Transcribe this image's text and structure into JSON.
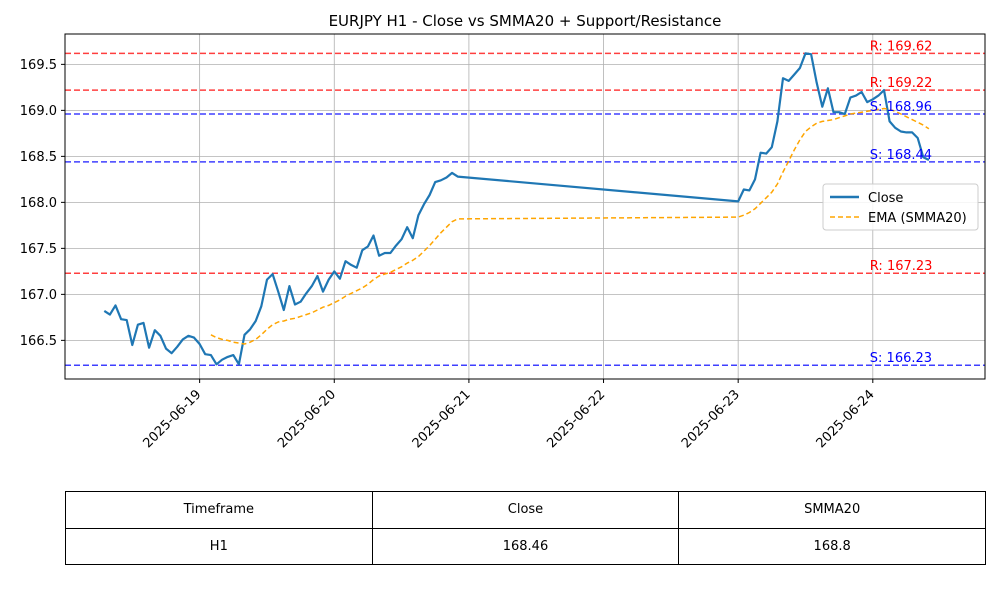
{
  "chart_data": {
    "type": "line",
    "title": "EURJPY H1 - Close vs SMMA20 + Support/Resistance",
    "xlabel": "",
    "ylabel": "",
    "x_tick_labels": [
      "2025-06-19",
      "2025-06-20",
      "2025-06-21",
      "2025-06-22",
      "2025-06-23",
      "2025-06-24"
    ],
    "y_tick_labels": [
      "166.5",
      "167.0",
      "167.5",
      "168.0",
      "168.5",
      "169.0",
      "169.5"
    ],
    "xlim": [
      "2025-06-18 00:00",
      "2025-06-24 20:00"
    ],
    "ylim": [
      166.08,
      169.83
    ],
    "grid": true,
    "legend_position": "center-right",
    "series": [
      {
        "name": "Close",
        "color": "#1f77b4",
        "style": "solid",
        "points": [
          [
            "2025-06-18 07:00",
            166.82
          ],
          [
            "2025-06-18 08:00",
            166.78
          ],
          [
            "2025-06-18 09:00",
            166.88
          ],
          [
            "2025-06-18 10:00",
            166.73
          ],
          [
            "2025-06-18 11:00",
            166.72
          ],
          [
            "2025-06-18 12:00",
            166.45
          ],
          [
            "2025-06-18 13:00",
            166.67
          ],
          [
            "2025-06-18 14:00",
            166.69
          ],
          [
            "2025-06-18 15:00",
            166.42
          ],
          [
            "2025-06-18 16:00",
            166.61
          ],
          [
            "2025-06-18 17:00",
            166.55
          ],
          [
            "2025-06-18 18:00",
            166.41
          ],
          [
            "2025-06-18 19:00",
            166.36
          ],
          [
            "2025-06-18 20:00",
            166.43
          ],
          [
            "2025-06-18 21:00",
            166.51
          ],
          [
            "2025-06-18 22:00",
            166.55
          ],
          [
            "2025-06-18 23:00",
            166.53
          ],
          [
            "2025-06-19 00:00",
            166.46
          ],
          [
            "2025-06-19 01:00",
            166.35
          ],
          [
            "2025-06-19 02:00",
            166.34
          ],
          [
            "2025-06-19 03:00",
            166.24
          ],
          [
            "2025-06-19 04:00",
            166.29
          ],
          [
            "2025-06-19 05:00",
            166.32
          ],
          [
            "2025-06-19 06:00",
            166.34
          ],
          [
            "2025-06-19 07:00",
            166.24
          ],
          [
            "2025-06-19 08:00",
            166.56
          ],
          [
            "2025-06-19 09:00",
            166.62
          ],
          [
            "2025-06-19 10:00",
            166.71
          ],
          [
            "2025-06-19 11:00",
            166.87
          ],
          [
            "2025-06-19 12:00",
            167.16
          ],
          [
            "2025-06-19 13:00",
            167.22
          ],
          [
            "2025-06-19 14:00",
            167.03
          ],
          [
            "2025-06-19 15:00",
            166.83
          ],
          [
            "2025-06-19 16:00",
            167.09
          ],
          [
            "2025-06-19 17:00",
            166.89
          ],
          [
            "2025-06-19 18:00",
            166.92
          ],
          [
            "2025-06-19 19:00",
            167.01
          ],
          [
            "2025-06-19 20:00",
            167.09
          ],
          [
            "2025-06-19 21:00",
            167.2
          ],
          [
            "2025-06-19 22:00",
            167.03
          ],
          [
            "2025-06-19 23:00",
            167.16
          ],
          [
            "2025-06-20 00:00",
            167.25
          ],
          [
            "2025-06-20 01:00",
            167.17
          ],
          [
            "2025-06-20 02:00",
            167.36
          ],
          [
            "2025-06-20 03:00",
            167.32
          ],
          [
            "2025-06-20 04:00",
            167.29
          ],
          [
            "2025-06-20 05:00",
            167.48
          ],
          [
            "2025-06-20 06:00",
            167.52
          ],
          [
            "2025-06-20 07:00",
            167.64
          ],
          [
            "2025-06-20 08:00",
            167.42
          ],
          [
            "2025-06-20 09:00",
            167.45
          ],
          [
            "2025-06-20 10:00",
            167.45
          ],
          [
            "2025-06-20 11:00",
            167.53
          ],
          [
            "2025-06-20 12:00",
            167.6
          ],
          [
            "2025-06-20 13:00",
            167.73
          ],
          [
            "2025-06-20 14:00",
            167.61
          ],
          [
            "2025-06-20 15:00",
            167.86
          ],
          [
            "2025-06-20 16:00",
            167.98
          ],
          [
            "2025-06-20 17:00",
            168.08
          ],
          [
            "2025-06-20 18:00",
            168.22
          ],
          [
            "2025-06-20 19:00",
            168.24
          ],
          [
            "2025-06-20 20:00",
            168.27
          ],
          [
            "2025-06-20 21:00",
            168.32
          ],
          [
            "2025-06-20 22:00",
            168.28
          ],
          [
            "2025-06-23 00:00",
            168.01
          ],
          [
            "2025-06-23 01:00",
            168.14
          ],
          [
            "2025-06-23 02:00",
            168.13
          ],
          [
            "2025-06-23 03:00",
            168.25
          ],
          [
            "2025-06-23 04:00",
            168.54
          ],
          [
            "2025-06-23 05:00",
            168.53
          ],
          [
            "2025-06-23 06:00",
            168.6
          ],
          [
            "2025-06-23 07:00",
            168.88
          ],
          [
            "2025-06-23 08:00",
            169.35
          ],
          [
            "2025-06-23 09:00",
            169.32
          ],
          [
            "2025-06-23 10:00",
            169.39
          ],
          [
            "2025-06-23 11:00",
            169.46
          ],
          [
            "2025-06-23 12:00",
            169.62
          ],
          [
            "2025-06-23 13:00",
            169.61
          ],
          [
            "2025-06-23 14:00",
            169.3
          ],
          [
            "2025-06-23 15:00",
            169.04
          ],
          [
            "2025-06-23 16:00",
            169.24
          ],
          [
            "2025-06-23 17:00",
            168.98
          ],
          [
            "2025-06-23 18:00",
            168.98
          ],
          [
            "2025-06-23 19:00",
            168.96
          ],
          [
            "2025-06-23 20:00",
            169.14
          ],
          [
            "2025-06-23 21:00",
            169.16
          ],
          [
            "2025-06-23 22:00",
            169.2
          ],
          [
            "2025-06-23 23:00",
            169.09
          ],
          [
            "2025-06-24 00:00",
            169.12
          ],
          [
            "2025-06-24 01:00",
            169.16
          ],
          [
            "2025-06-24 02:00",
            169.22
          ],
          [
            "2025-06-24 03:00",
            168.88
          ],
          [
            "2025-06-24 04:00",
            168.81
          ],
          [
            "2025-06-24 05:00",
            168.77
          ],
          [
            "2025-06-24 06:00",
            168.76
          ],
          [
            "2025-06-24 07:00",
            168.76
          ],
          [
            "2025-06-24 08:00",
            168.7
          ],
          [
            "2025-06-24 09:00",
            168.49
          ],
          [
            "2025-06-24 10:00",
            168.46
          ]
        ]
      },
      {
        "name": "EMA (SMMA20)",
        "color": "#ffa500",
        "style": "dashed",
        "points": [
          [
            "2025-06-19 02:00",
            166.56
          ],
          [
            "2025-06-19 03:00",
            166.53
          ],
          [
            "2025-06-19 04:00",
            166.51
          ],
          [
            "2025-06-19 05:00",
            166.5
          ],
          [
            "2025-06-19 06:00",
            166.48
          ],
          [
            "2025-06-19 07:00",
            166.47
          ],
          [
            "2025-06-19 08:00",
            166.46
          ],
          [
            "2025-06-19 09:00",
            166.48
          ],
          [
            "2025-06-19 10:00",
            166.51
          ],
          [
            "2025-06-19 11:00",
            166.56
          ],
          [
            "2025-06-19 12:00",
            166.62
          ],
          [
            "2025-06-19 13:00",
            166.67
          ],
          [
            "2025-06-19 14:00",
            166.7
          ],
          [
            "2025-06-19 15:00",
            166.71
          ],
          [
            "2025-06-19 16:00",
            166.73
          ],
          [
            "2025-06-19 17:00",
            166.74
          ],
          [
            "2025-06-19 18:00",
            166.76
          ],
          [
            "2025-06-19 19:00",
            166.78
          ],
          [
            "2025-06-19 20:00",
            166.8
          ],
          [
            "2025-06-19 21:00",
            166.83
          ],
          [
            "2025-06-19 22:00",
            166.86
          ],
          [
            "2025-06-19 23:00",
            166.88
          ],
          [
            "2025-06-20 00:00",
            166.91
          ],
          [
            "2025-06-20 01:00",
            166.94
          ],
          [
            "2025-06-20 02:00",
            166.98
          ],
          [
            "2025-06-20 03:00",
            167.01
          ],
          [
            "2025-06-20 04:00",
            167.04
          ],
          [
            "2025-06-20 05:00",
            167.07
          ],
          [
            "2025-06-20 06:00",
            167.11
          ],
          [
            "2025-06-20 07:00",
            167.16
          ],
          [
            "2025-06-20 08:00",
            167.2
          ],
          [
            "2025-06-20 09:00",
            167.22
          ],
          [
            "2025-06-20 10:00",
            167.24
          ],
          [
            "2025-06-20 11:00",
            167.27
          ],
          [
            "2025-06-20 12:00",
            167.3
          ],
          [
            "2025-06-20 13:00",
            167.34
          ],
          [
            "2025-06-20 14:00",
            167.37
          ],
          [
            "2025-06-20 15:00",
            167.41
          ],
          [
            "2025-06-20 16:00",
            167.47
          ],
          [
            "2025-06-20 17:00",
            167.53
          ],
          [
            "2025-06-20 18:00",
            167.6
          ],
          [
            "2025-06-20 19:00",
            167.67
          ],
          [
            "2025-06-20 20:00",
            167.73
          ],
          [
            "2025-06-20 21:00",
            167.79
          ],
          [
            "2025-06-20 22:00",
            167.82
          ],
          [
            "2025-06-23 00:00",
            167.84
          ],
          [
            "2025-06-23 01:00",
            167.86
          ],
          [
            "2025-06-23 02:00",
            167.89
          ],
          [
            "2025-06-23 03:00",
            167.93
          ],
          [
            "2025-06-23 04:00",
            167.99
          ],
          [
            "2025-06-23 05:00",
            168.05
          ],
          [
            "2025-06-23 06:00",
            168.11
          ],
          [
            "2025-06-23 07:00",
            168.2
          ],
          [
            "2025-06-23 08:00",
            168.33
          ],
          [
            "2025-06-23 09:00",
            168.45
          ],
          [
            "2025-06-23 10:00",
            168.57
          ],
          [
            "2025-06-23 11:00",
            168.68
          ],
          [
            "2025-06-23 12:00",
            168.77
          ],
          [
            "2025-06-23 13:00",
            168.82
          ],
          [
            "2025-06-23 14:00",
            168.86
          ],
          [
            "2025-06-23 15:00",
            168.88
          ],
          [
            "2025-06-23 16:00",
            168.89
          ],
          [
            "2025-06-23 17:00",
            168.9
          ],
          [
            "2025-06-23 18:00",
            168.92
          ],
          [
            "2025-06-23 19:00",
            168.94
          ],
          [
            "2025-06-23 20:00",
            168.96
          ],
          [
            "2025-06-23 21:00",
            168.97
          ],
          [
            "2025-06-23 22:00",
            168.98
          ],
          [
            "2025-06-23 23:00",
            168.99
          ],
          [
            "2025-06-24 00:00",
            169.0
          ],
          [
            "2025-06-24 01:00",
            169.01
          ],
          [
            "2025-06-24 02:00",
            169.02
          ],
          [
            "2025-06-24 03:00",
            169.01
          ],
          [
            "2025-06-24 04:00",
            168.99
          ],
          [
            "2025-06-24 05:00",
            168.96
          ],
          [
            "2025-06-24 06:00",
            168.93
          ],
          [
            "2025-06-24 07:00",
            168.9
          ],
          [
            "2025-06-24 08:00",
            168.87
          ],
          [
            "2025-06-24 09:00",
            168.84
          ],
          [
            "2025-06-24 10:00",
            168.8
          ]
        ]
      }
    ],
    "levels": [
      {
        "kind": "resistance",
        "value": 169.62,
        "label": "R: 169.62",
        "color": "#ff0000"
      },
      {
        "kind": "resistance",
        "value": 169.22,
        "label": "R: 169.22",
        "color": "#ff0000"
      },
      {
        "kind": "support",
        "value": 168.96,
        "label": "S: 168.96",
        "color": "#0000ff"
      },
      {
        "kind": "support",
        "value": 168.44,
        "label": "S: 168.44",
        "color": "#0000ff"
      },
      {
        "kind": "resistance",
        "value": 167.23,
        "label": "R: 167.23",
        "color": "#ff0000"
      },
      {
        "kind": "support",
        "value": 166.23,
        "label": "S: 166.23",
        "color": "#0000ff"
      }
    ],
    "level_label_at": "2025-06-24 00:00"
  },
  "summary_table": {
    "headers": [
      "Timeframe",
      "Close",
      "SMMA20"
    ],
    "rows": [
      [
        "H1",
        "168.46",
        "168.8"
      ]
    ]
  }
}
